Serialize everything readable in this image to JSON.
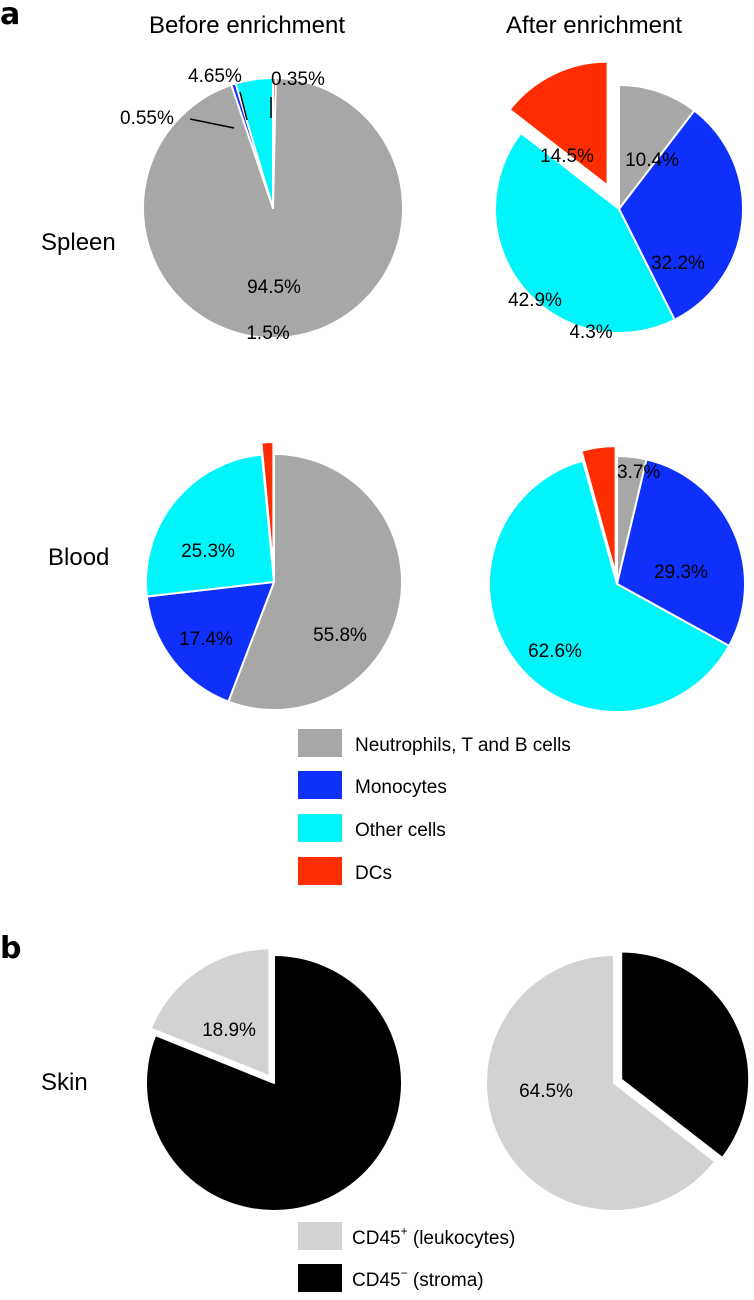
{
  "panel_a": {
    "label": "a",
    "columns": [
      "Before enrichment",
      "After enrichment"
    ],
    "rows": [
      "Spleen",
      "Blood"
    ]
  },
  "panel_b": {
    "label": "b",
    "rows": [
      "Skin"
    ]
  },
  "colors": {
    "neutrophils": "#a7a7a7",
    "monocytes": "#0f2ffb",
    "other": "#00f5fb",
    "dcs": "#ff2d00",
    "cd45_plus": "#d2d2d2",
    "cd45_minus": "#000000"
  },
  "legend_a": [
    {
      "label": "Neutrophils, T and B cells",
      "color_key": "neutrophils"
    },
    {
      "label": "Monocytes",
      "color_key": "monocytes"
    },
    {
      "label": "Other cells",
      "color_key": "other"
    },
    {
      "label": "DCs",
      "color_key": "dcs"
    }
  ],
  "legend_b": [
    {
      "main": "CD45",
      "sup": "+",
      "rest": " (leukocytes)",
      "color_key": "cd45_plus"
    },
    {
      "main": "CD45",
      "sup": "−",
      "rest": " (stroma)",
      "color_key": "cd45_minus"
    }
  ],
  "chart_data": [
    {
      "type": "pie",
      "panel": "a",
      "tissue": "Spleen",
      "condition": "Before enrichment",
      "slices": [
        {
          "category": "DCs",
          "value": 0.35,
          "label": "0.35%",
          "color_key": "dcs"
        },
        {
          "category": "Neutrophils, T and B cells",
          "value": 94.5,
          "label": "94.5%",
          "color_key": "neutrophils"
        },
        {
          "category": "Monocytes",
          "value": 0.55,
          "label": "0.55%",
          "color_key": "monocytes"
        },
        {
          "category": "Other cells",
          "value": 4.65,
          "label": "4.65%",
          "color_key": "other"
        }
      ]
    },
    {
      "type": "pie",
      "panel": "a",
      "tissue": "Spleen",
      "condition": "After enrichment",
      "slices": [
        {
          "category": "Neutrophils, T and B cells",
          "value": 10.4,
          "label": "10.4%",
          "color_key": "neutrophils"
        },
        {
          "category": "Monocytes",
          "value": 32.2,
          "label": "32.2%",
          "color_key": "monocytes"
        },
        {
          "category": "Other cells",
          "value": 42.9,
          "label": "42.9%",
          "color_key": "other"
        },
        {
          "category": "DCs",
          "value": 14.5,
          "label": "14.5%",
          "color_key": "dcs",
          "exploded": true
        }
      ]
    },
    {
      "type": "pie",
      "panel": "a",
      "tissue": "Blood",
      "condition": "Before enrichment",
      "slices": [
        {
          "category": "Neutrophils, T and B cells",
          "value": 55.8,
          "label": "55.8%",
          "color_key": "neutrophils"
        },
        {
          "category": "Monocytes",
          "value": 17.4,
          "label": "17.4%",
          "color_key": "monocytes"
        },
        {
          "category": "Other cells",
          "value": 25.3,
          "label": "25.3%",
          "color_key": "other"
        },
        {
          "category": "DCs",
          "value": 1.5,
          "label": "1.5%",
          "color_key": "dcs",
          "exploded": true
        }
      ]
    },
    {
      "type": "pie",
      "panel": "a",
      "tissue": "Blood",
      "condition": "After enrichment",
      "slices": [
        {
          "category": "Neutrophils, T and B cells",
          "value": 3.7,
          "label": "3.7%",
          "color_key": "neutrophils"
        },
        {
          "category": "Monocytes",
          "value": 29.3,
          "label": "29.3%",
          "color_key": "monocytes"
        },
        {
          "category": "Other cells",
          "value": 62.6,
          "label": "62.6%",
          "color_key": "other"
        },
        {
          "category": "DCs",
          "value": 4.3,
          "label": "4.3%",
          "color_key": "dcs",
          "exploded": true
        }
      ]
    },
    {
      "type": "pie",
      "panel": "b",
      "tissue": "Skin",
      "condition": "Before enrichment",
      "slices": [
        {
          "category": "CD45− (stroma)",
          "value": 81.1,
          "label": "",
          "color_key": "cd45_minus"
        },
        {
          "category": "CD45+ (leukocytes)",
          "value": 18.9,
          "label": "18.9%",
          "color_key": "cd45_plus",
          "exploded": true
        }
      ]
    },
    {
      "type": "pie",
      "panel": "b",
      "tissue": "Skin",
      "condition": "After enrichment",
      "slices": [
        {
          "category": "CD45− (stroma)",
          "value": 35.5,
          "label": "",
          "color_key": "cd45_minus",
          "exploded": true
        },
        {
          "category": "CD45+ (leukocytes)",
          "value": 64.5,
          "label": "64.5%",
          "color_key": "cd45_plus"
        }
      ]
    }
  ]
}
